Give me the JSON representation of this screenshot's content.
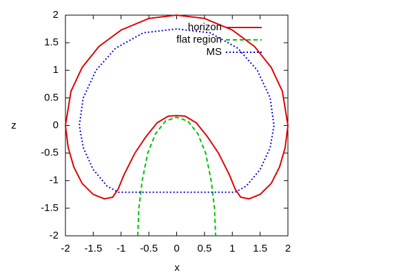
{
  "chart_data": {
    "type": "line",
    "xlabel": "x",
    "ylabel": "z",
    "xlim": [
      -2,
      2
    ],
    "ylim": [
      -2,
      2
    ],
    "xticks": [
      -2,
      -1.5,
      -1,
      -0.5,
      0,
      0.5,
      1,
      1.5,
      2
    ],
    "yticks": [
      -2,
      -1.5,
      -1,
      -0.5,
      0,
      0.5,
      1,
      1.5,
      2
    ],
    "legend": "top-right",
    "series": [
      {
        "name": "horizon",
        "color": "#e00000",
        "dash": "solid",
        "x": [
          0,
          -0.5,
          -1,
          -1.4,
          -1.7,
          -1.9,
          -2,
          -1.95,
          -1.85,
          -1.7,
          -1.5,
          -1.3,
          -1.15,
          -1.05,
          -0.95,
          -0.75,
          -0.55,
          -0.35,
          -0.15,
          0,
          0.15,
          0.35,
          0.55,
          0.75,
          0.95,
          1.05,
          1.15,
          1.3,
          1.5,
          1.7,
          1.85,
          1.95,
          2,
          1.9,
          1.7,
          1.4,
          1,
          0.5,
          0
        ],
        "values": [
          2,
          1.94,
          1.73,
          1.43,
          1.05,
          0.62,
          0,
          -0.4,
          -0.75,
          -1.05,
          -1.25,
          -1.33,
          -1.3,
          -1.15,
          -0.9,
          -0.5,
          -0.2,
          0.05,
          0.17,
          0.18,
          0.17,
          0.05,
          -0.2,
          -0.5,
          -0.9,
          -1.15,
          -1.3,
          -1.33,
          -1.25,
          -1.05,
          -0.75,
          -0.4,
          0,
          0.62,
          1.05,
          1.43,
          1.73,
          1.94,
          2
        ]
      },
      {
        "name": "flat region",
        "color": "#00c000",
        "dash": "dashed",
        "x": [
          -0.7,
          -0.68,
          -0.62,
          -0.52,
          -0.38,
          -0.2,
          0,
          0.2,
          0.38,
          0.52,
          0.62,
          0.68,
          0.7
        ],
        "values": [
          -2,
          -1.5,
          -1,
          -0.5,
          -0.15,
          0.08,
          0.15,
          0.08,
          -0.15,
          -0.5,
          -1,
          -1.5,
          -2
        ]
      },
      {
        "name": "MS",
        "color": "#0000e0",
        "dash": "dotted",
        "x": [
          0,
          -0.6,
          -1.1,
          -1.45,
          -1.68,
          -1.75,
          -1.68,
          -1.5,
          -1.25,
          -1.05,
          0,
          1.05,
          1.25,
          1.5,
          1.68,
          1.75,
          1.68,
          1.45,
          1.1,
          0.6,
          0
        ],
        "values": [
          1.75,
          1.68,
          1.4,
          1,
          0.5,
          0,
          -0.4,
          -0.8,
          -1.1,
          -1.21,
          -1.21,
          -1.21,
          -1.1,
          -0.8,
          -0.4,
          0,
          0.5,
          1,
          1.4,
          1.68,
          1.75
        ]
      }
    ]
  }
}
